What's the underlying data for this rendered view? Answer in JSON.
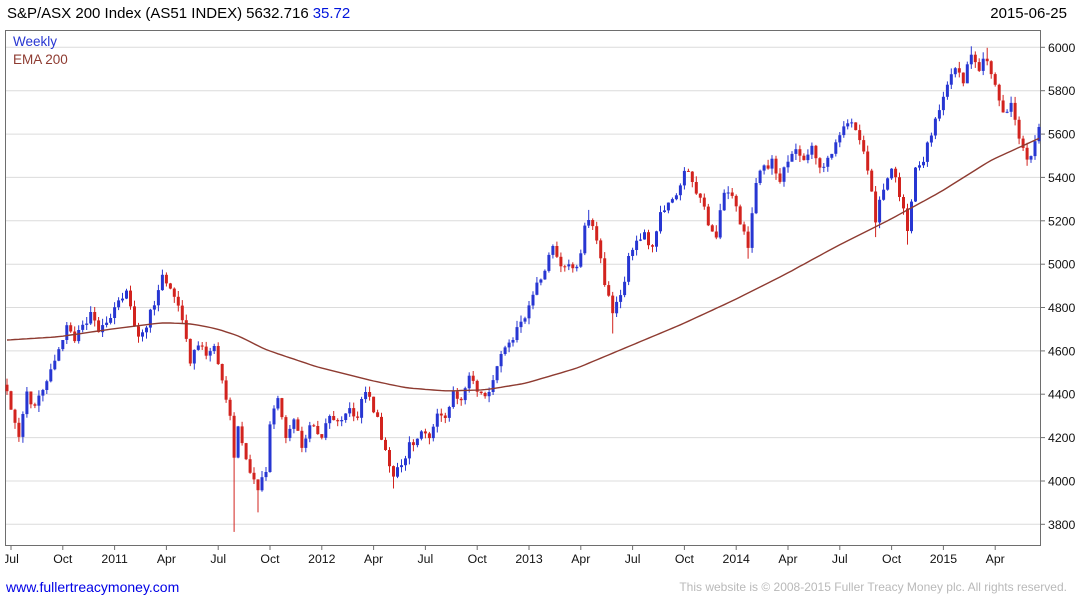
{
  "header": {
    "title": "S&P/ASX 200 Index (AS51 INDEX)",
    "last_value": "5632.716",
    "change": "35.72",
    "date": "2015-06-25"
  },
  "legend": {
    "series": "Weekly",
    "overlay": "EMA 200"
  },
  "footer": {
    "link": "www.fullertreacymoney.com",
    "copyright": "This website is © 2008-2015 Fuller Treacy Money plc. All rights reserved."
  },
  "colors": {
    "accent_blue": "#0014dc",
    "link": "#0000e6",
    "muted": "#b9b9b9",
    "text": "#000000"
  },
  "chart_data": {
    "type": "candlestick",
    "title": "S&P/ASX 200 Index (AS51 INDEX)",
    "timeframe": "Weekly",
    "overlay": "EMA 200",
    "date": "2015-06-25",
    "last_close": 5632.716,
    "change": 35.72,
    "ylim": [
      3700,
      6080
    ],
    "y_ticks": [
      3800,
      4000,
      4200,
      4400,
      4600,
      4800,
      5000,
      5200,
      5400,
      5600,
      5800,
      6000
    ],
    "weeks_total": 260,
    "x_ticks": [
      {
        "label": "Jul",
        "week": 1
      },
      {
        "label": "Oct",
        "week": 14
      },
      {
        "label": "2011",
        "week": 27
      },
      {
        "label": "Apr",
        "week": 40
      },
      {
        "label": "Jul",
        "week": 53
      },
      {
        "label": "Oct",
        "week": 66
      },
      {
        "label": "2012",
        "week": 79
      },
      {
        "label": "Apr",
        "week": 92
      },
      {
        "label": "Jul",
        "week": 105
      },
      {
        "label": "Oct",
        "week": 118
      },
      {
        "label": "2013",
        "week": 131
      },
      {
        "label": "Apr",
        "week": 144
      },
      {
        "label": "Jul",
        "week": 157
      },
      {
        "label": "Oct",
        "week": 170
      },
      {
        "label": "2014",
        "week": 183
      },
      {
        "label": "Apr",
        "week": 196
      },
      {
        "label": "Jul",
        "week": 209
      },
      {
        "label": "Oct",
        "week": 222
      },
      {
        "label": "2015",
        "week": 235
      },
      {
        "label": "Apr",
        "week": 248
      }
    ],
    "price_anchors": [
      [
        0,
        4400
      ],
      [
        2,
        4270
      ],
      [
        3,
        4210
      ],
      [
        5,
        4420
      ],
      [
        7,
        4330
      ],
      [
        9,
        4440
      ],
      [
        11,
        4500
      ],
      [
        13,
        4600
      ],
      [
        15,
        4720
      ],
      [
        17,
        4650
      ],
      [
        19,
        4710
      ],
      [
        21,
        4760
      ],
      [
        23,
        4700
      ],
      [
        26,
        4770
      ],
      [
        28,
        4820
      ],
      [
        30,
        4870
      ],
      [
        33,
        4660
      ],
      [
        35,
        4720
      ],
      [
        37,
        4830
      ],
      [
        39,
        4950
      ],
      [
        41,
        4880
      ],
      [
        43,
        4800
      ],
      [
        46,
        4560
      ],
      [
        48,
        4640
      ],
      [
        50,
        4580
      ],
      [
        52,
        4620
      ],
      [
        54,
        4470
      ],
      [
        56,
        4300
      ],
      [
        57,
        4120
      ],
      [
        58,
        4230
      ],
      [
        60,
        4100
      ],
      [
        62,
        4000
      ],
      [
        63,
        3940
      ],
      [
        65,
        4060
      ],
      [
        66,
        4240
      ],
      [
        68,
        4390
      ],
      [
        70,
        4190
      ],
      [
        72,
        4290
      ],
      [
        74,
        4150
      ],
      [
        76,
        4240
      ],
      [
        79,
        4220
      ],
      [
        81,
        4290
      ],
      [
        84,
        4270
      ],
      [
        86,
        4340
      ],
      [
        88,
        4290
      ],
      [
        90,
        4430
      ],
      [
        93,
        4290
      ],
      [
        95,
        4130
      ],
      [
        97,
        4020
      ],
      [
        99,
        4090
      ],
      [
        101,
        4160
      ],
      [
        104,
        4230
      ],
      [
        106,
        4190
      ],
      [
        108,
        4320
      ],
      [
        110,
        4270
      ],
      [
        112,
        4400
      ],
      [
        114,
        4360
      ],
      [
        116,
        4480
      ],
      [
        118,
        4430
      ],
      [
        120,
        4390
      ],
      [
        122,
        4470
      ],
      [
        124,
        4590
      ],
      [
        127,
        4660
      ],
      [
        129,
        4720
      ],
      [
        131,
        4790
      ],
      [
        133,
        4910
      ],
      [
        135,
        4990
      ],
      [
        137,
        5090
      ],
      [
        139,
        4990
      ],
      [
        141,
        5010
      ],
      [
        143,
        4970
      ],
      [
        145,
        5160
      ],
      [
        146,
        5220
      ],
      [
        148,
        5110
      ],
      [
        150,
        4910
      ],
      [
        152,
        4770
      ],
      [
        154,
        4840
      ],
      [
        156,
        5030
      ],
      [
        158,
        5090
      ],
      [
        160,
        5130
      ],
      [
        162,
        5070
      ],
      [
        164,
        5230
      ],
      [
        166,
        5290
      ],
      [
        168,
        5330
      ],
      [
        170,
        5430
      ],
      [
        172,
        5380
      ],
      [
        174,
        5290
      ],
      [
        176,
        5200
      ],
      [
        178,
        5130
      ],
      [
        180,
        5350
      ],
      [
        182,
        5310
      ],
      [
        184,
        5190
      ],
      [
        186,
        5070
      ],
      [
        188,
        5390
      ],
      [
        190,
        5450
      ],
      [
        192,
        5470
      ],
      [
        194,
        5390
      ],
      [
        196,
        5470
      ],
      [
        198,
        5530
      ],
      [
        200,
        5490
      ],
      [
        202,
        5550
      ],
      [
        204,
        5430
      ],
      [
        206,
        5490
      ],
      [
        208,
        5570
      ],
      [
        210,
        5630
      ],
      [
        212,
        5650
      ],
      [
        214,
        5590
      ],
      [
        216,
        5430
      ],
      [
        218,
        5210
      ],
      [
        220,
        5360
      ],
      [
        222,
        5460
      ],
      [
        224,
        5310
      ],
      [
        226,
        5170
      ],
      [
        228,
        5430
      ],
      [
        230,
        5490
      ],
      [
        232,
        5590
      ],
      [
        234,
        5730
      ],
      [
        236,
        5830
      ],
      [
        238,
        5910
      ],
      [
        240,
        5850
      ],
      [
        242,
        5965
      ],
      [
        244,
        5905
      ],
      [
        246,
        5950
      ],
      [
        248,
        5845
      ],
      [
        250,
        5690
      ],
      [
        252,
        5740
      ],
      [
        254,
        5590
      ],
      [
        256,
        5465
      ],
      [
        258,
        5560
      ],
      [
        259,
        5632.716
      ]
    ],
    "ema_anchors": [
      [
        0,
        4650
      ],
      [
        13,
        4665
      ],
      [
        26,
        4700
      ],
      [
        39,
        4730
      ],
      [
        46,
        4725
      ],
      [
        52,
        4705
      ],
      [
        58,
        4670
      ],
      [
        65,
        4605
      ],
      [
        78,
        4525
      ],
      [
        91,
        4465
      ],
      [
        100,
        4430
      ],
      [
        110,
        4415
      ],
      [
        120,
        4420
      ],
      [
        130,
        4450
      ],
      [
        143,
        4520
      ],
      [
        156,
        4620
      ],
      [
        169,
        4720
      ],
      [
        182,
        4830
      ],
      [
        195,
        4950
      ],
      [
        208,
        5080
      ],
      [
        221,
        5200
      ],
      [
        234,
        5330
      ],
      [
        247,
        5480
      ],
      [
        259,
        5580
      ]
    ],
    "wick_overrides": {
      "3": {
        "low": 4180
      },
      "39": {
        "high": 4975
      },
      "57": {
        "low": 3765
      },
      "63": {
        "low": 3855
      },
      "97": {
        "low": 3965
      },
      "146": {
        "high": 5250
      },
      "152": {
        "low": 4680
      },
      "186": {
        "low": 5025
      },
      "218": {
        "low": 5125
      },
      "226": {
        "low": 5090
      },
      "242": {
        "high": 6005
      },
      "246": {
        "high": 5998
      }
    },
    "colors": {
      "up": "#2736d2",
      "down": "#d2231e",
      "ema": "#8e3b31",
      "grid": "#dcdcdc",
      "axis": "#6e6e6e",
      "label": "#111111"
    }
  }
}
